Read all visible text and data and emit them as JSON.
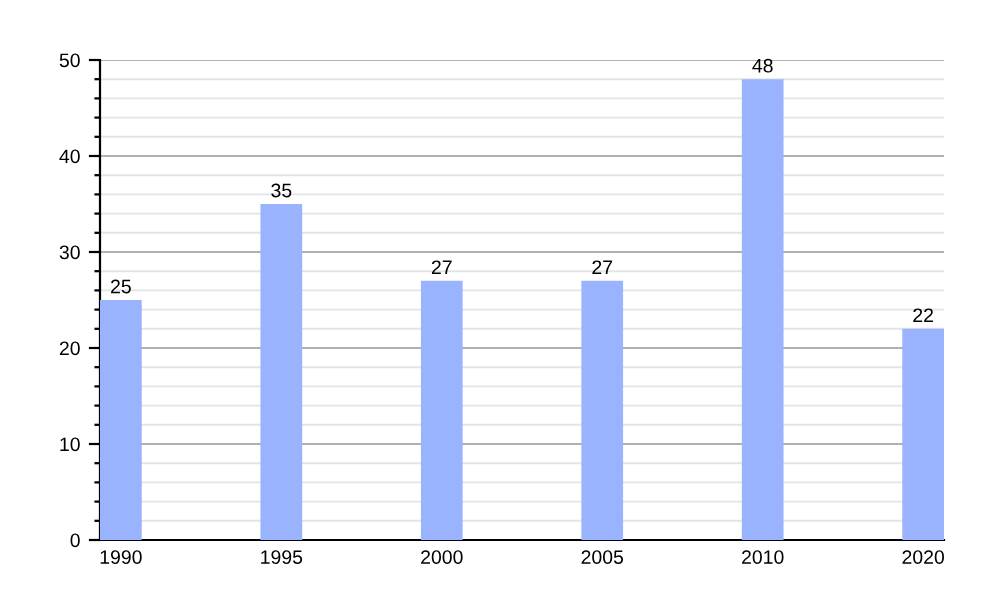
{
  "chart_data": {
    "type": "bar",
    "categories": [
      "1990",
      "1995",
      "2000",
      "2005",
      "2010",
      "2020"
    ],
    "values": [
      25,
      35,
      27,
      27,
      48,
      22
    ],
    "color": "#99b3ff",
    "ylim": [
      0,
      50
    ],
    "yticks": [
      0,
      {
        "value": 2,
        "label": null
      },
      {
        "value": 4,
        "label": null
      },
      {
        "value": 6,
        "label": null
      },
      {
        "value": 8,
        "label": null
      },
      10,
      {
        "value": 12,
        "label": null
      },
      {
        "value": 14,
        "label": null
      },
      {
        "value": 16,
        "label": null
      },
      {
        "value": 18,
        "label": null
      },
      20,
      {
        "value": 22,
        "label": null
      },
      {
        "value": 24,
        "label": null
      },
      {
        "value": 26,
        "label": null
      },
      {
        "value": 28,
        "label": null
      },
      30,
      {
        "value": 32,
        "label": null
      },
      {
        "value": 34,
        "label": null
      },
      {
        "value": 36,
        "label": null
      },
      {
        "value": 38,
        "label": null
      },
      40,
      {
        "value": 42,
        "label": null
      },
      {
        "value": 44,
        "label": null
      },
      {
        "value": 46,
        "label": null
      },
      {
        "value": 48,
        "label": null
      },
      50
    ],
    "grid": "y",
    "data_labels": true
  }
}
